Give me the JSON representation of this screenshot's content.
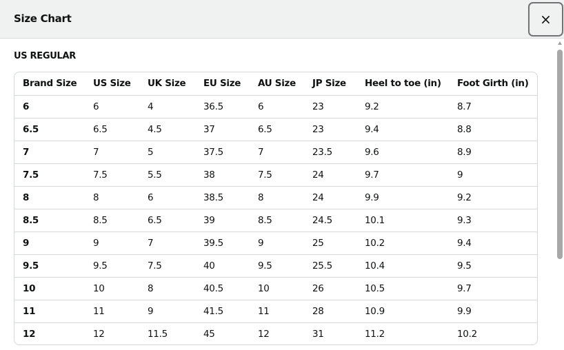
{
  "header": {
    "title": "Size Chart",
    "close_icon": "×"
  },
  "section": {
    "title": "US REGULAR"
  },
  "table": {
    "columns": [
      "Brand Size",
      "US Size",
      "UK Size",
      "EU Size",
      "AU Size",
      "JP Size",
      "Heel to toe (in)",
      "Foot Girth (in)"
    ],
    "rows": [
      [
        "6",
        "6",
        "4",
        "36.5",
        "6",
        "23",
        "9.2",
        "8.7"
      ],
      [
        "6.5",
        "6.5",
        "4.5",
        "37",
        "6.5",
        "23",
        "9.4",
        "8.8"
      ],
      [
        "7",
        "7",
        "5",
        "37.5",
        "7",
        "23.5",
        "9.6",
        "8.9"
      ],
      [
        "7.5",
        "7.5",
        "5.5",
        "38",
        "7.5",
        "24",
        "9.7",
        "9"
      ],
      [
        "8",
        "8",
        "6",
        "38.5",
        "8",
        "24",
        "9.9",
        "9.2"
      ],
      [
        "8.5",
        "8.5",
        "6.5",
        "39",
        "8.5",
        "24.5",
        "10.1",
        "9.3"
      ],
      [
        "9",
        "9",
        "7",
        "39.5",
        "9",
        "25",
        "10.2",
        "9.4"
      ],
      [
        "9.5",
        "9.5",
        "7.5",
        "40",
        "9.5",
        "25.5",
        "10.4",
        "9.5"
      ],
      [
        "10",
        "10",
        "8",
        "40.5",
        "10",
        "26",
        "10.5",
        "9.7"
      ],
      [
        "11",
        "11",
        "9",
        "41.5",
        "11",
        "28",
        "10.9",
        "9.9"
      ],
      [
        "12",
        "12",
        "11.5",
        "45",
        "12",
        "31",
        "11.2",
        "10.2"
      ]
    ]
  }
}
